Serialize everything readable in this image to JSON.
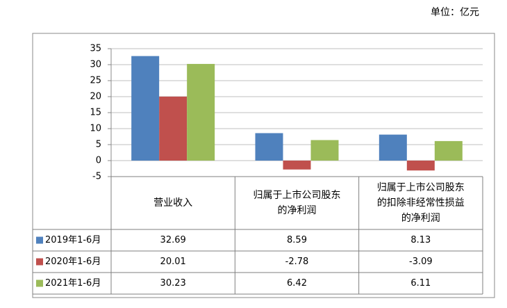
{
  "unit": "单位：亿元",
  "chart_data": {
    "type": "bar",
    "categories": [
      "营业收入",
      "归属于上市公司股东的净利润",
      "归属于上市公司股东的扣除非经常性损益的净利润"
    ],
    "series": [
      {
        "name": "2019年1-6月",
        "color": "#4f81bd",
        "values": [
          32.69,
          8.59,
          8.13
        ]
      },
      {
        "name": "2020年1-6月",
        "color": "#c0504d",
        "values": [
          20.01,
          -2.78,
          -3.09
        ]
      },
      {
        "name": "2021年1-6月",
        "color": "#9bbb59",
        "values": [
          30.23,
          6.42,
          6.11
        ]
      }
    ],
    "ylim": [
      -5,
      35
    ],
    "yticks": [
      -5,
      0,
      5,
      10,
      15,
      20,
      25,
      30,
      35
    ],
    "grid": true
  }
}
